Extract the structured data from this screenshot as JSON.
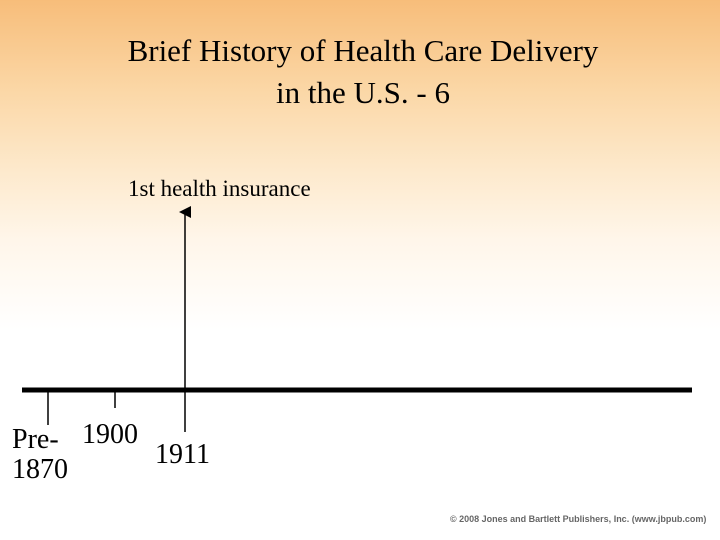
{
  "title": {
    "line1": "Brief History of Health Care Delivery",
    "line2": "in the U.S. - 6"
  },
  "timeline": {
    "event_label": "1st  health insurance",
    "ticks": [
      {
        "line1": "Pre-",
        "line2": "1870"
      },
      {
        "label": "1900"
      },
      {
        "label": "1911"
      }
    ]
  },
  "footer": {
    "copyright": "© 2008 Jones and Bartlett Publishers, Inc. (www.jbpub.com)"
  }
}
